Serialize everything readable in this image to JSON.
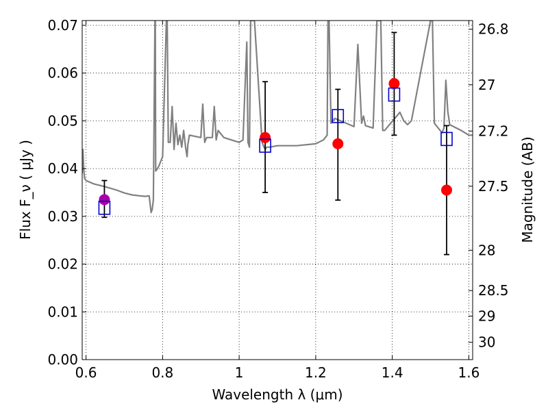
{
  "chart_data": {
    "type": "scatter",
    "xlabel": "Wavelength  λ (μm)",
    "ylabel": "Flux  F_ν  ( μJy )",
    "y2label": "Magnitude (AB)",
    "xlim": [
      0.59,
      1.61
    ],
    "ylim": [
      0.0,
      0.071
    ],
    "grid": true,
    "x_ticks": [
      0.6,
      0.8,
      1.0,
      1.2,
      1.4,
      1.6
    ],
    "x_tick_labels": [
      "0.6",
      "0.8",
      "1",
      "1.2",
      "1.4",
      "1.6"
    ],
    "y_ticks": [
      0.0,
      0.01,
      0.02,
      0.03,
      0.04,
      0.05,
      0.06,
      0.07
    ],
    "y_tick_labels": [
      "0.00",
      "0.01",
      "0.02",
      "0.03",
      "0.04",
      "0.05",
      "0.06",
      "0.07"
    ],
    "y2_ticks": [
      26.8,
      27.0,
      27.2,
      27.5,
      28.0,
      28.5,
      29.0,
      30.0
    ],
    "y2_tick_labels": [
      "26.8",
      "27",
      "27.2",
      "27.5",
      "28",
      "28.5",
      "29",
      "30"
    ],
    "template_spectrum": {
      "color": "#808080",
      "x": [
        0.59,
        0.592,
        0.594,
        0.596,
        0.6,
        0.62,
        0.65,
        0.68,
        0.7,
        0.72,
        0.74,
        0.755,
        0.765,
        0.77,
        0.773,
        0.776,
        0.78,
        0.781,
        0.782,
        0.785,
        0.79,
        0.8,
        0.81,
        0.812,
        0.815,
        0.82,
        0.825,
        0.83,
        0.835,
        0.84,
        0.845,
        0.85,
        0.855,
        0.86,
        0.864,
        0.866,
        0.87,
        0.9,
        0.905,
        0.91,
        0.915,
        0.93,
        0.935,
        0.94,
        0.945,
        0.96,
        0.98,
        1.0,
        1.01,
        1.02,
        1.023,
        1.027,
        1.03,
        1.04,
        1.06,
        1.065,
        1.068,
        1.072,
        1.08,
        1.1,
        1.15,
        1.2,
        1.22,
        1.23,
        1.232,
        1.235,
        1.24,
        1.25,
        1.3,
        1.31,
        1.32,
        1.325,
        1.33,
        1.35,
        1.36,
        1.37,
        1.375,
        1.38,
        1.42,
        1.43,
        1.44,
        1.45,
        1.5,
        1.505,
        1.51,
        1.52,
        1.53,
        1.535,
        1.54,
        1.545,
        1.55,
        1.58,
        1.6,
        1.61
      ],
      "y": [
        0.039,
        0.044,
        0.04,
        0.038,
        0.0375,
        0.0368,
        0.0362,
        0.0355,
        0.0349,
        0.0345,
        0.0343,
        0.0342,
        0.0343,
        0.0308,
        0.0315,
        0.0335,
        0.071,
        0.071,
        0.0395,
        0.0398,
        0.0405,
        0.0425,
        0.071,
        0.071,
        0.0455,
        0.0455,
        0.053,
        0.044,
        0.0495,
        0.045,
        0.047,
        0.0445,
        0.048,
        0.0445,
        0.0425,
        0.045,
        0.047,
        0.0465,
        0.0535,
        0.0455,
        0.0465,
        0.0465,
        0.053,
        0.046,
        0.048,
        0.0465,
        0.046,
        0.0455,
        0.046,
        0.0665,
        0.0455,
        0.0445,
        0.071,
        0.071,
        0.0455,
        0.0445,
        0.044,
        0.0445,
        0.0445,
        0.0448,
        0.0448,
        0.0452,
        0.046,
        0.047,
        0.071,
        0.071,
        0.0495,
        0.0505,
        0.0488,
        0.066,
        0.0495,
        0.051,
        0.049,
        0.0485,
        0.071,
        0.071,
        0.048,
        0.048,
        0.0518,
        0.05,
        0.0492,
        0.05,
        0.071,
        0.071,
        0.0495,
        0.0485,
        0.0475,
        0.0485,
        0.0585,
        0.052,
        0.0492,
        0.048,
        0.047,
        0.047
      ]
    },
    "series": [
      {
        "name": "",
        "marker": "circle",
        "color": "#ff0000",
        "points": [
          {
            "x": 1.068,
            "y": 0.0465,
            "err_low": 0.035,
            "err_high": 0.0582
          },
          {
            "x": 1.258,
            "y": 0.0452,
            "err_low": 0.0334,
            "err_high": 0.0566
          },
          {
            "x": 1.405,
            "y": 0.0578,
            "err_low": 0.047,
            "err_high": 0.0685
          },
          {
            "x": 1.542,
            "y": 0.0355,
            "err_low": 0.022,
            "err_high": 0.049
          }
        ]
      },
      {
        "name": "",
        "marker": "circle",
        "color": "#aa00aa",
        "points": [
          {
            "x": 0.648,
            "y": 0.0335,
            "err_low": 0.0298,
            "err_high": 0.0375
          }
        ]
      },
      {
        "name": "",
        "marker": "open-square",
        "color": "#0000cc",
        "points": [
          {
            "x": 0.648,
            "y": 0.0318
          },
          {
            "x": 1.068,
            "y": 0.0448
          },
          {
            "x": 1.258,
            "y": 0.051
          },
          {
            "x": 1.405,
            "y": 0.0555
          },
          {
            "x": 1.542,
            "y": 0.0462
          }
        ]
      }
    ]
  }
}
